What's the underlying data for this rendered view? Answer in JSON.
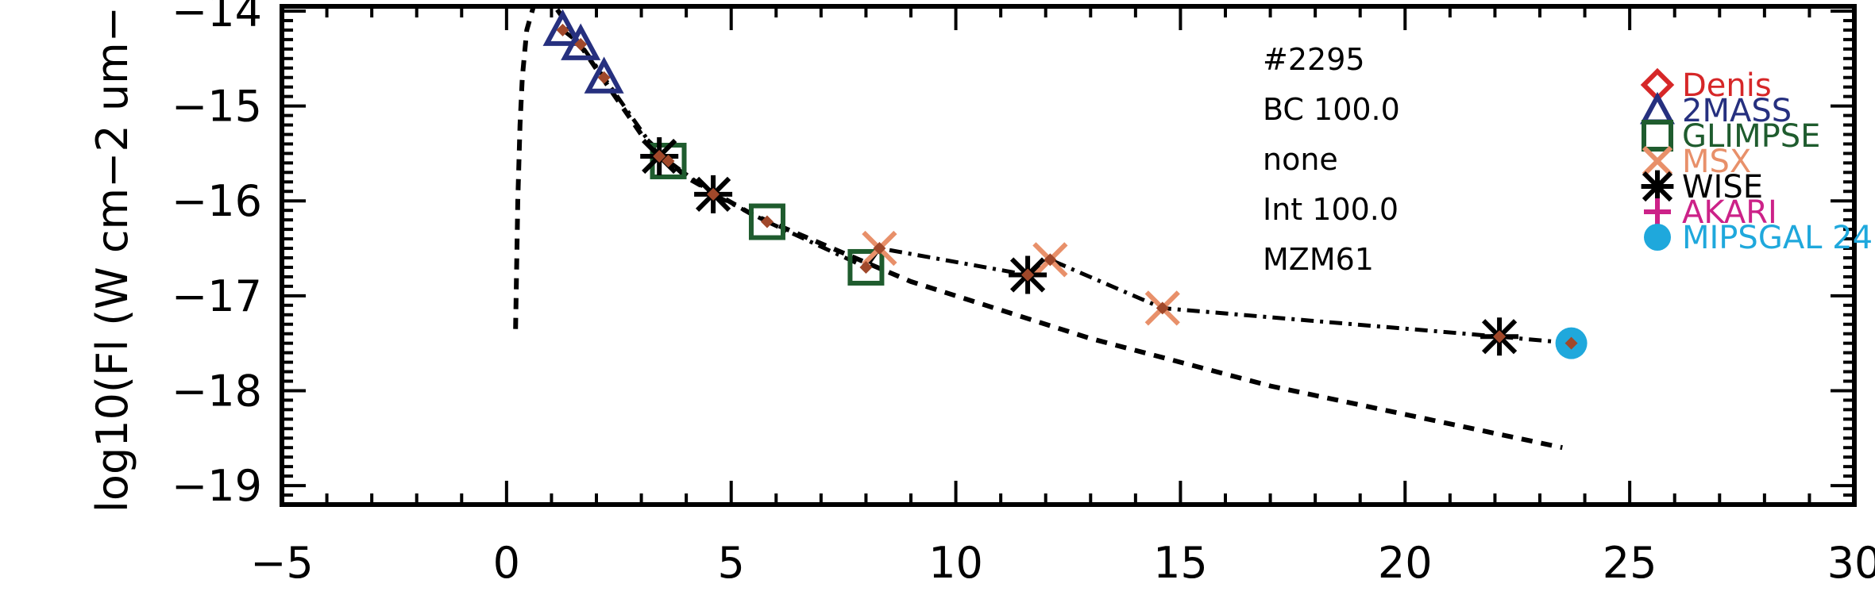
{
  "chart_data": {
    "type": "scatter",
    "title": "",
    "xlabel": "",
    "ylabel": "log10(Fl (W cm−2 um−",
    "xlim": [
      -5,
      30
    ],
    "ylim": [
      -19.2,
      -13.95
    ],
    "x_ticks": [
      -5,
      0,
      5,
      10,
      15,
      20,
      25,
      30
    ],
    "x_tick_labels": [
      "−5",
      "0",
      "5",
      "10",
      "15",
      "20",
      "25",
      "30"
    ],
    "y_ticks": [
      -19,
      -18,
      -17,
      -16,
      -15,
      -14
    ],
    "y_tick_labels": [
      "−19",
      "−18",
      "−17",
      "−16",
      "−15",
      "−14"
    ],
    "grid": false,
    "legend_position": "right",
    "annotations": [
      "#2295",
      "BC 100.0",
      "none",
      "Int 100.0",
      "MZM61"
    ],
    "series": [
      {
        "name": "Denis",
        "marker": "diamond",
        "color": "#d62728",
        "x": [],
        "y": []
      },
      {
        "name": "2MASS",
        "marker": "triangle",
        "color": "#26307f",
        "x": [
          1.25,
          1.65,
          2.17
        ],
        "y": [
          -14.2,
          -14.35,
          -14.7
        ]
      },
      {
        "name": "GLIMPSE",
        "marker": "square",
        "color": "#1f5c2e",
        "x": [
          3.6,
          5.8,
          8.0
        ],
        "y": [
          -15.58,
          -16.22,
          -16.7
        ]
      },
      {
        "name": "MSX",
        "marker": "x",
        "color": "#e8906a",
        "x": [
          8.3,
          12.1,
          14.6
        ],
        "y": [
          -16.5,
          -16.62,
          -17.13
        ]
      },
      {
        "name": "WISE",
        "marker": "asterisk",
        "color": "#000000",
        "x": [
          3.4,
          4.6,
          11.6,
          22.1
        ],
        "y": [
          -15.53,
          -15.93,
          -16.78,
          -17.43
        ]
      },
      {
        "name": "AKARI",
        "marker": "plus",
        "color": "#cc2288",
        "x": [],
        "y": []
      },
      {
        "name": "MIPSGAL 24",
        "marker": "circle",
        "color": "#1fa8dc",
        "x": [
          23.7
        ],
        "y": [
          -17.5
        ]
      }
    ],
    "model_points": {
      "color": "#a0482a",
      "x": [
        1.25,
        1.65,
        2.17,
        3.4,
        3.6,
        4.6,
        5.8,
        8.0,
        8.3,
        11.6,
        12.1,
        14.6,
        22.1,
        23.7
      ],
      "y": [
        -14.2,
        -14.35,
        -14.7,
        -15.53,
        -15.58,
        -15.93,
        -16.22,
        -16.7,
        -16.5,
        -16.78,
        -16.62,
        -17.13,
        -17.43,
        -17.5
      ]
    },
    "dashdot_line": {
      "x": [
        1.25,
        1.65,
        2.17,
        3.4,
        3.6,
        4.6,
        5.8,
        8.0,
        8.3,
        11.6,
        12.1,
        14.6,
        22.1,
        23.7
      ],
      "y": [
        -14.2,
        -14.35,
        -14.7,
        -15.53,
        -15.58,
        -15.93,
        -16.22,
        -16.7,
        -16.5,
        -16.78,
        -16.62,
        -17.13,
        -17.43,
        -17.5
      ]
    },
    "dashed_line": {
      "x": [
        0.2,
        0.25,
        0.3,
        0.35,
        0.45,
        0.6,
        0.8,
        1.0,
        1.3,
        1.7,
        2.2,
        3.0,
        4.0,
        5.5,
        7.0,
        9.0,
        11.0,
        13.0,
        15.0,
        17.0,
        19.0,
        21.0,
        23.5
      ],
      "y": [
        -17.35,
        -16.0,
        -15.2,
        -14.7,
        -14.2,
        -13.95,
        -13.85,
        -13.9,
        -14.1,
        -14.4,
        -14.75,
        -15.3,
        -15.75,
        -16.15,
        -16.45,
        -16.85,
        -17.15,
        -17.45,
        -17.7,
        -17.95,
        -18.15,
        -18.35,
        -18.6
      ]
    }
  }
}
